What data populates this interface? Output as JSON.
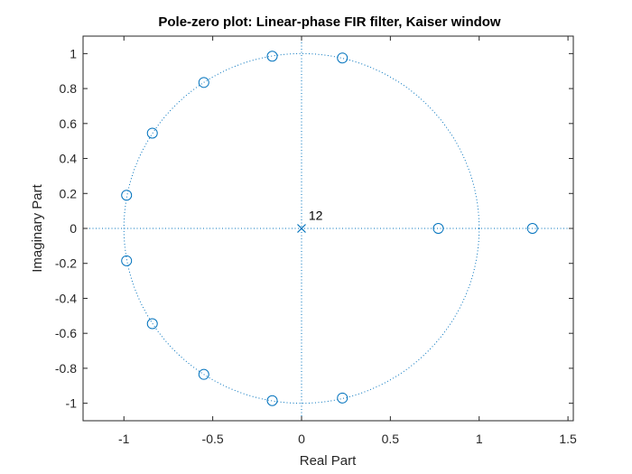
{
  "chart_data": {
    "type": "scatter",
    "title": "Pole-zero plot: Linear-phase FIR filter, Kaiser window",
    "xlabel": "Real Part",
    "ylabel": "Imaginary Part",
    "xlim": [
      -1.23,
      1.53
    ],
    "ylim": [
      -1.1,
      1.1
    ],
    "xticks": [
      -1,
      -0.5,
      0,
      0.5,
      1,
      1.5
    ],
    "xtick_labels": [
      "-1",
      "-0.5",
      "0",
      "0.5",
      "1",
      "1.5"
    ],
    "yticks": [
      -1,
      -0.8,
      -0.6,
      -0.4,
      -0.2,
      0,
      0.2,
      0.4,
      0.6,
      0.8,
      1
    ],
    "ytick_labels": [
      "-1",
      "-0.8",
      "-0.6",
      "-0.4",
      "-0.2",
      "0",
      "0.2",
      "0.4",
      "0.6",
      "0.8",
      "1"
    ],
    "unit_circle": true,
    "zero_lines": true,
    "grid": false,
    "series": [
      {
        "marker": "o",
        "x": [
          -0.165,
          0.23,
          -0.55,
          -0.84,
          -0.985,
          -0.985,
          -0.84,
          -0.55,
          -0.165,
          0.23,
          0.77,
          1.3
        ],
        "y": [
          0.985,
          0.975,
          0.835,
          0.545,
          0.19,
          -0.185,
          -0.545,
          -0.835,
          -0.985,
          -0.97,
          0.0,
          0.0
        ]
      },
      {
        "marker": "x",
        "x": [
          0
        ],
        "y": [
          0
        ]
      }
    ],
    "annotations": [
      {
        "text": "12",
        "x": 0.04,
        "y": 0.04
      }
    ],
    "colors": {
      "marker": "#0072BD",
      "axis": "#262626",
      "circle": "#0072BD"
    }
  }
}
